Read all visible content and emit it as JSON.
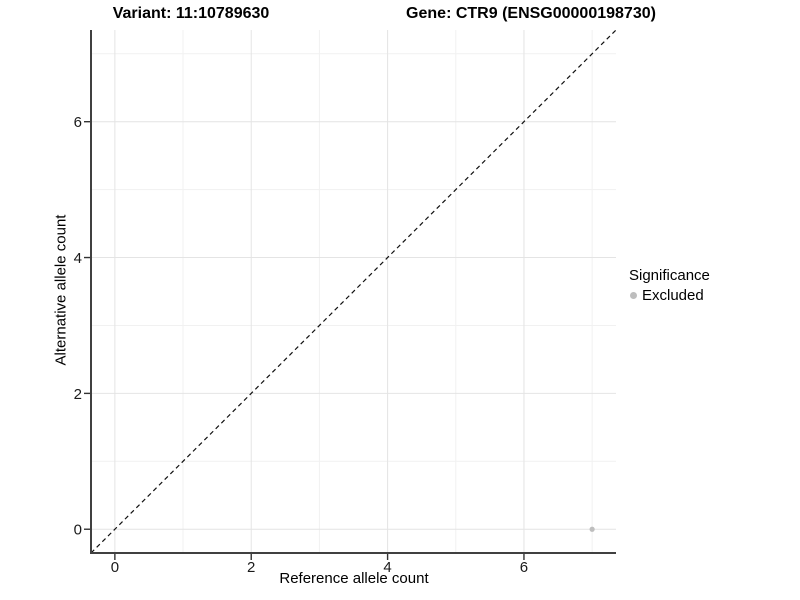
{
  "titles": {
    "variant": "Variant: 11:10789630",
    "gene": "Gene: CTR9 (ENSG00000198730)"
  },
  "chart_data": {
    "type": "scatter",
    "title_left": "Variant: 11:10789630",
    "title_right": "Gene: CTR9 (ENSG00000198730)",
    "xlabel": "Reference allele count",
    "ylabel": "Alternative allele count",
    "xlim": [
      -0.35,
      7.35
    ],
    "ylim": [
      -0.35,
      7.35
    ],
    "xticks": [
      0,
      2,
      4,
      6
    ],
    "yticks": [
      0,
      2,
      4,
      6
    ],
    "minor_xticks": [
      1,
      3,
      5,
      7
    ],
    "minor_yticks": [
      1,
      3,
      5,
      7
    ],
    "grid": "major+minor",
    "identity_line": {
      "style": "dashed",
      "slope": 1,
      "intercept": 0
    },
    "points": [
      {
        "x": 7,
        "y": 0,
        "series": "Excluded"
      }
    ],
    "legend": {
      "title": "Significance",
      "position": "right",
      "items": [
        {
          "label": "Excluded",
          "color": "#bebebe"
        }
      ]
    }
  },
  "colors": {
    "background": "#ffffff",
    "grid_major": "#e4e4e4",
    "grid_minor": "#f1f1f1",
    "axis_line": "#404040",
    "tick_mark": "#333333",
    "tick_label": "#1a1a1a",
    "identity_line": "#111111",
    "point": "#bebebe"
  }
}
